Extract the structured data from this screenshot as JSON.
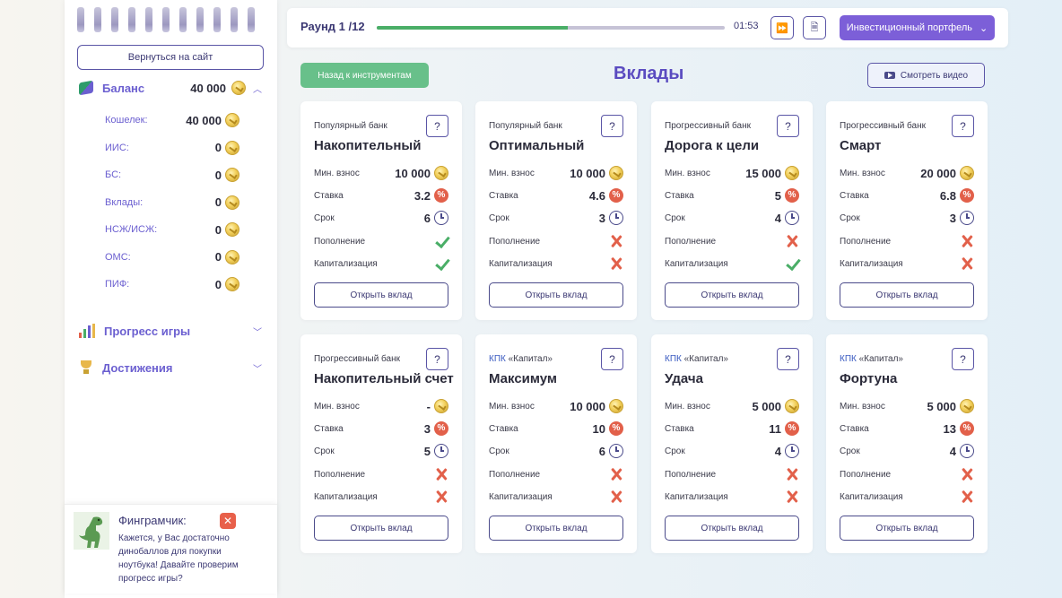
{
  "sidebar": {
    "back_to_site": "Вернуться на сайт",
    "balance": {
      "label": "Баланс",
      "value": "40 000"
    },
    "balance_items": [
      {
        "label": "Кошелек:",
        "value": "40 000"
      },
      {
        "label": "ИИС:",
        "value": "0"
      },
      {
        "label": "БС:",
        "value": "0"
      },
      {
        "label": "Вклады:",
        "value": "0"
      },
      {
        "label": "НСЖ/ИСЖ:",
        "value": "0"
      },
      {
        "label": "ОМС:",
        "value": "0"
      },
      {
        "label": "ПИФ:",
        "value": "0"
      }
    ],
    "progress_label": "Прогресс игры",
    "achievements_label": "Достижения"
  },
  "assistant": {
    "title": "Финграмчик:",
    "close": "✕",
    "text": "Кажется, у Вас достаточно динобаллов для покупки ноутбука! Давайте проверим прогресс игры?"
  },
  "topbar": {
    "round": "Раунд 1 /12",
    "progress": 0.55,
    "timer": "01:53",
    "portfolio_button": "Инвестиционный портфель",
    "progress_color": "#4aae67",
    "accent_color": "#7c5fd8"
  },
  "toolbar": {
    "back_to_tools": "Назад к инструментам",
    "title": "Вклады",
    "watch_video": "Смотреть видео"
  },
  "labels": {
    "min_deposit": "Мин. взнос",
    "rate": "Ставка",
    "term": "Срок",
    "replenishment": "Пополнение",
    "capitalization": "Капитализация",
    "open_button": "Открыть вклад",
    "help": "?"
  },
  "cards": [
    {
      "bank_prefix": "",
      "bank": "Популярный банк",
      "name": "Накопительный",
      "min": "10 000",
      "rate": "3.2",
      "term": "6",
      "replenish": true,
      "capital": true
    },
    {
      "bank_prefix": "",
      "bank": "Популярный банк",
      "name": "Оптимальный",
      "min": "10 000",
      "rate": "4.6",
      "term": "3",
      "replenish": false,
      "capital": false
    },
    {
      "bank_prefix": "",
      "bank": "Прогрессивный банк",
      "name": "Дорога к цели",
      "min": "15 000",
      "rate": "5",
      "term": "4",
      "replenish": false,
      "capital": true
    },
    {
      "bank_prefix": "",
      "bank": "Прогрессивный банк",
      "name": "Смарт",
      "min": "20 000",
      "rate": "6.8",
      "term": "3",
      "replenish": false,
      "capital": false
    },
    {
      "bank_prefix": "",
      "bank": "Прогрессивный банк",
      "name": "Накопительный счет",
      "min": "-",
      "rate": "3",
      "term": "5",
      "replenish": false,
      "capital": false
    },
    {
      "bank_prefix": "КПК",
      "bank": " «Капитал»",
      "name": "Максимум",
      "min": "10 000",
      "rate": "10",
      "term": "6",
      "replenish": false,
      "capital": false
    },
    {
      "bank_prefix": "КПК",
      "bank": " «Капитал»",
      "name": "Удача",
      "min": "5 000",
      "rate": "11",
      "term": "4",
      "replenish": false,
      "capital": false
    },
    {
      "bank_prefix": "КПК",
      "bank": " «Капитал»",
      "name": "Фортуна",
      "min": "5 000",
      "rate": "13",
      "term": "4",
      "replenish": false,
      "capital": false
    }
  ]
}
